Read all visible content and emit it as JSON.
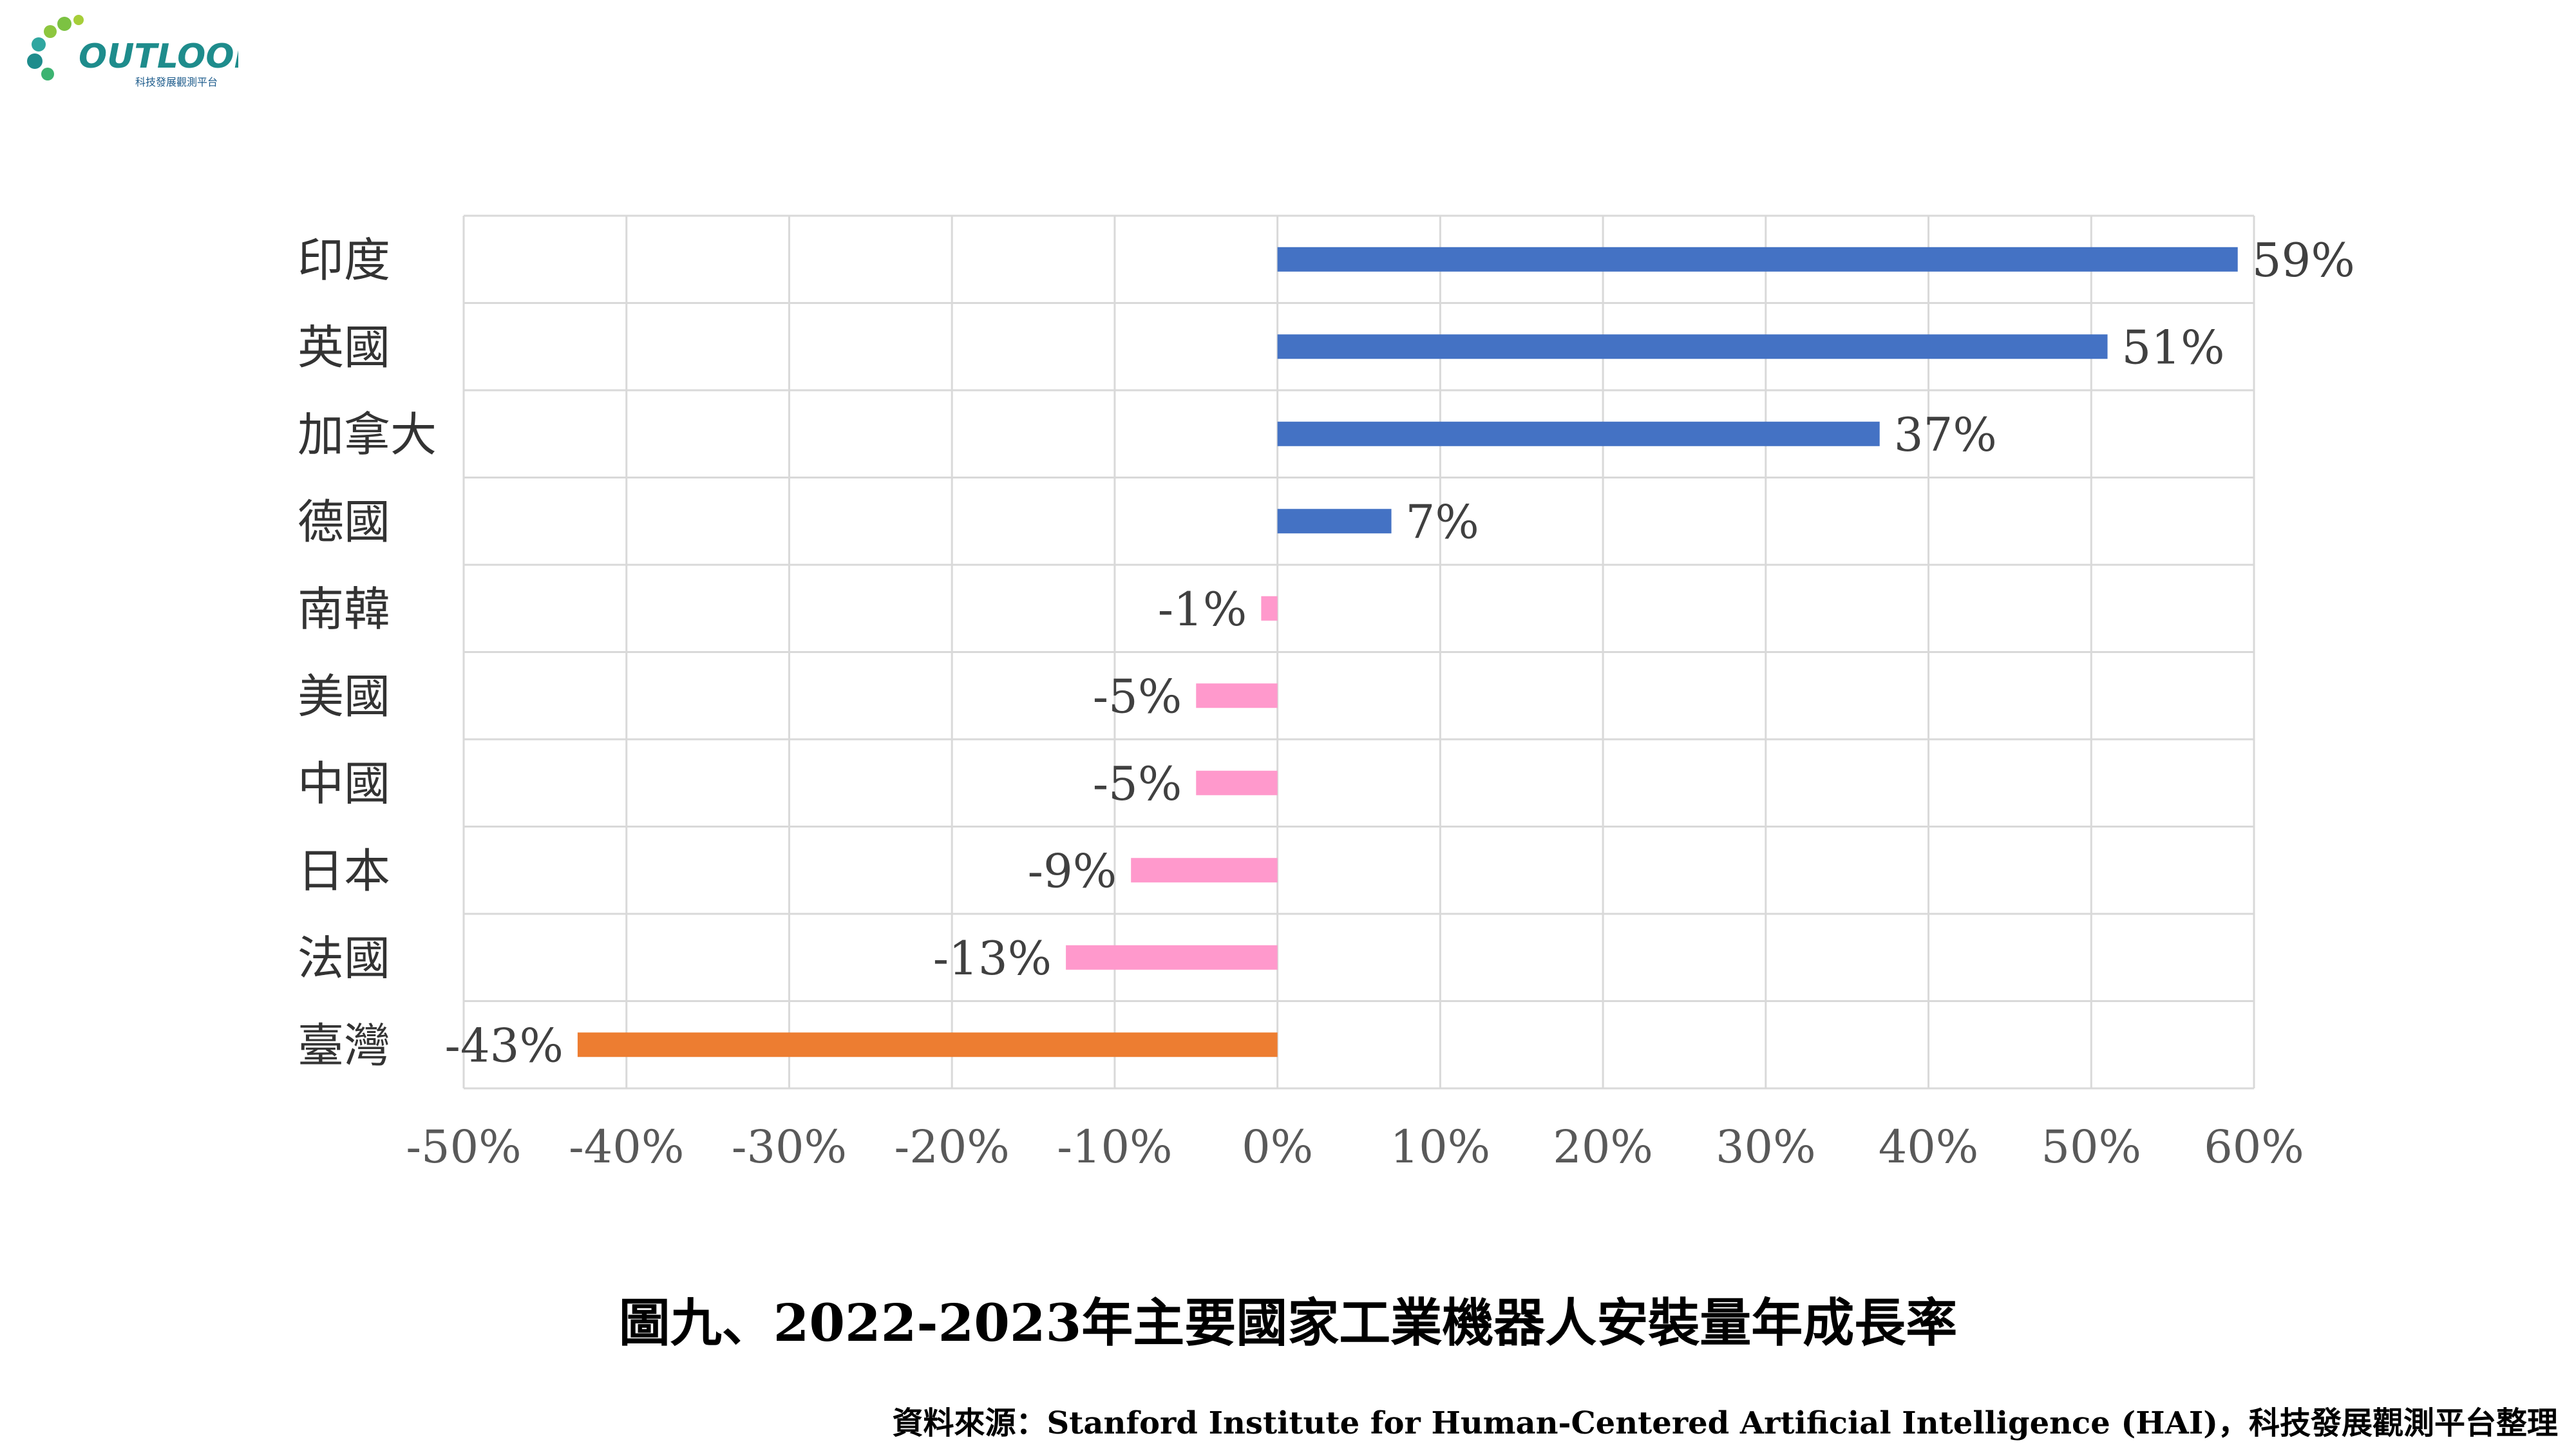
{
  "logo": {
    "text": "OUTLOOK",
    "subtext": "科技發展觀測平台"
  },
  "colors": {
    "positive": "#4472C4",
    "negative": "#FF99CC",
    "highlight": "#ED7D31",
    "grid": "#D9D9D9"
  },
  "chart_data": {
    "type": "bar",
    "orientation": "horizontal",
    "categories": [
      "印度",
      "英國",
      "加拿大",
      "德國",
      "南韓",
      "美國",
      "中國",
      "日本",
      "法國",
      "臺灣"
    ],
    "values": [
      59,
      51,
      37,
      7,
      -1,
      -5,
      -5,
      -9,
      -13,
      -43
    ],
    "value_labels": [
      "59%",
      "51%",
      "37%",
      "7%",
      "-1%",
      "-5%",
      "-5%",
      "-9%",
      "-13%",
      "-43%"
    ],
    "xlim": [
      -50,
      60
    ],
    "xticks": [
      -50,
      -40,
      -30,
      -20,
      -10,
      0,
      10,
      20,
      30,
      40,
      50,
      60
    ],
    "xtick_labels": [
      "-50%",
      "-40%",
      "-30%",
      "-20%",
      "-10%",
      "0%",
      "10%",
      "20%",
      "30%",
      "40%",
      "50%",
      "60%"
    ],
    "bar_colors": [
      "#4472C4",
      "#4472C4",
      "#4472C4",
      "#4472C4",
      "#FF99CC",
      "#FF99CC",
      "#FF99CC",
      "#FF99CC",
      "#FF99CC",
      "#ED7D31"
    ],
    "grid": true,
    "title": "圖九、2022-2023年主要國家工業機器人安裝量年成長率"
  },
  "source": "資料來源：Stanford Institute for Human-Centered Artificial Intelligence (HAI)，科技發展觀測平台整理"
}
